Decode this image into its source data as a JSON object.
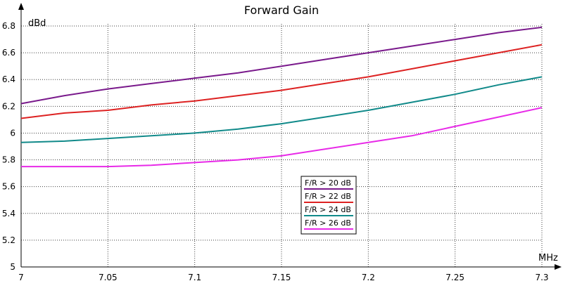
{
  "chart_data": {
    "type": "line",
    "title": "Forward Gain",
    "xlabel": "MHz",
    "ylabel": "dBd",
    "xlim": [
      7,
      7.3
    ],
    "ylim": [
      5,
      6.8
    ],
    "x_ticks": [
      "7",
      "7.05",
      "7.1",
      "7.15",
      "7.2",
      "7.25",
      "7.3"
    ],
    "y_ticks": [
      "5",
      "5.2",
      "5.4",
      "5.6",
      "5.8",
      "6",
      "6.2",
      "6.4",
      "6.6",
      "6.8"
    ],
    "grid": true,
    "legend_position": "center-bottom",
    "x": [
      7.0,
      7.025,
      7.05,
      7.075,
      7.1,
      7.125,
      7.15,
      7.175,
      7.2,
      7.225,
      7.25,
      7.275,
      7.3
    ],
    "series": [
      {
        "name": "F/R > 20 dB",
        "color": "#7a1a8c",
        "values": [
          6.22,
          6.28,
          6.33,
          6.37,
          6.41,
          6.45,
          6.5,
          6.55,
          6.6,
          6.65,
          6.7,
          6.75,
          6.79
        ]
      },
      {
        "name": "F/R > 22 dB",
        "color": "#dd2222",
        "values": [
          6.11,
          6.15,
          6.17,
          6.21,
          6.24,
          6.28,
          6.32,
          6.37,
          6.42,
          6.48,
          6.54,
          6.6,
          6.66
        ]
      },
      {
        "name": "F/R > 24 dB",
        "color": "#118a8a",
        "values": [
          5.93,
          5.94,
          5.96,
          5.98,
          6.0,
          6.03,
          6.07,
          6.12,
          6.17,
          6.23,
          6.29,
          6.36,
          6.42
        ]
      },
      {
        "name": "F/R > 26 dB",
        "color": "#e82ae8",
        "values": [
          5.75,
          5.75,
          5.75,
          5.76,
          5.78,
          5.8,
          5.83,
          5.88,
          5.93,
          5.98,
          6.05,
          6.12,
          6.19
        ]
      }
    ]
  }
}
